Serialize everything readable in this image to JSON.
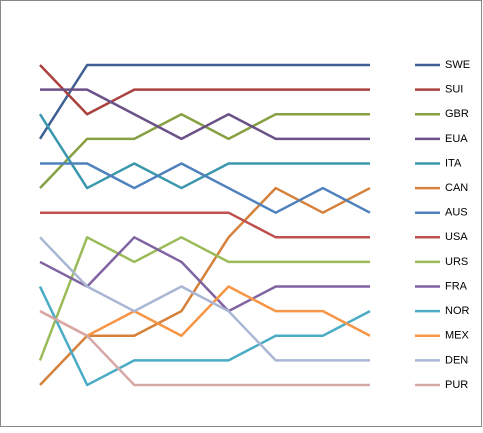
{
  "chart_data": {
    "type": "line",
    "categories": [
      null,
      null,
      null,
      null,
      null,
      null,
      null,
      null
    ],
    "ylim": [
      14,
      1
    ],
    "legend": "right",
    "series": [
      {
        "name": "SWE",
        "color": "#3f5f92",
        "values": [
          4,
          1,
          1,
          1,
          1,
          1,
          1,
          1
        ]
      },
      {
        "name": "SUI",
        "color": "#a9413e",
        "values": [
          1,
          3,
          2,
          2,
          2,
          2,
          2,
          2
        ]
      },
      {
        "name": "GBR",
        "color": "#86a043",
        "values": [
          6,
          4,
          4,
          3,
          4,
          3,
          3,
          3
        ]
      },
      {
        "name": "EUA",
        "color": "#6a5188",
        "values": [
          2,
          2,
          3,
          4,
          3,
          4,
          4,
          4
        ]
      },
      {
        "name": "ITA",
        "color": "#3a97ad",
        "values": [
          3,
          6,
          5,
          6,
          5,
          5,
          5,
          5
        ]
      },
      {
        "name": "CAN",
        "color": "#d6813b",
        "values": [
          14,
          12,
          12,
          11,
          8,
          6,
          7,
          6
        ]
      },
      {
        "name": "AUS",
        "color": "#4f81bd",
        "values": [
          5,
          5,
          6,
          5,
          6,
          7,
          6,
          7
        ]
      },
      {
        "name": "USA",
        "color": "#c0504d",
        "values": [
          7,
          7,
          7,
          7,
          7,
          8,
          8,
          8
        ]
      },
      {
        "name": "URS",
        "color": "#9bbb59",
        "values": [
          13,
          8,
          9,
          8,
          9,
          9,
          9,
          9
        ]
      },
      {
        "name": "FRA",
        "color": "#8064a2",
        "values": [
          9,
          10,
          8,
          9,
          11,
          10,
          10,
          10
        ]
      },
      {
        "name": "NOR",
        "color": "#4bacc6",
        "values": [
          10,
          14,
          13,
          13,
          13,
          12,
          12,
          11
        ]
      },
      {
        "name": "MEX",
        "color": "#f79646",
        "values": [
          11,
          12,
          11,
          12,
          10,
          11,
          11,
          12
        ]
      },
      {
        "name": "DEN",
        "color": "#aab7d4",
        "values": [
          8,
          10,
          11,
          10,
          11,
          13,
          13,
          13
        ]
      },
      {
        "name": "PUR",
        "color": "#d6a9a8",
        "values": [
          11,
          12,
          14,
          14,
          14,
          14,
          14,
          14
        ]
      }
    ]
  }
}
